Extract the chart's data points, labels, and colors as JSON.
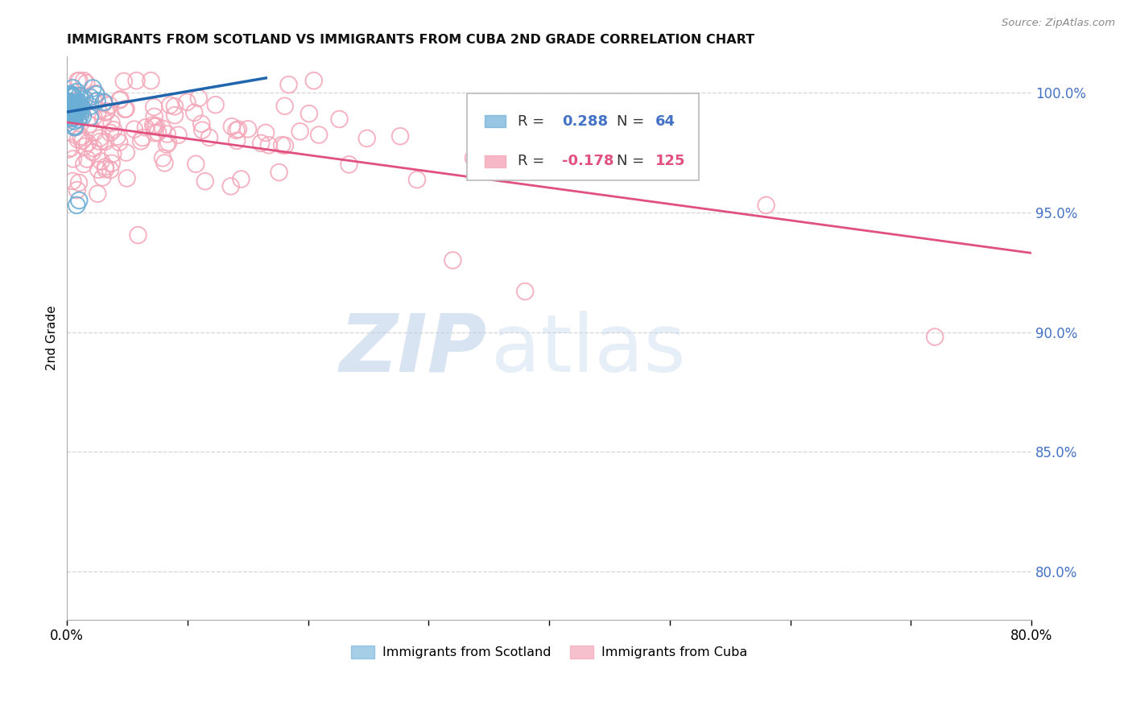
{
  "title": "IMMIGRANTS FROM SCOTLAND VS IMMIGRANTS FROM CUBA 2ND GRADE CORRELATION CHART",
  "source": "Source: ZipAtlas.com",
  "ylabel": "2nd Grade",
  "scotland_color": "#6baed6",
  "cuba_color": "#f4a6b8",
  "scotland_line_color": "#2166ac",
  "cuba_line_color": "#e05080",
  "watermark_zip": "ZIP",
  "watermark_atlas": "atlas",
  "background_color": "#ffffff",
  "grid_color": "#cccccc",
  "title_color": "#111111",
  "right_axis_color": "#4472c4",
  "yticks": [
    80.0,
    85.0,
    90.0,
    95.0,
    100.0
  ],
  "xlim": [
    0.0,
    0.8
  ],
  "ylim": [
    78.0,
    101.5
  ]
}
